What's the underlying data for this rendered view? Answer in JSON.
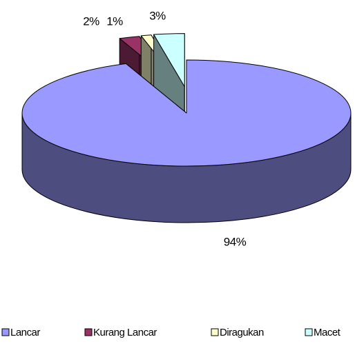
{
  "chart_data": {
    "type": "pie",
    "categories": [
      "Lancar",
      "Kurang Lancar",
      "Diragukan",
      "Macet"
    ],
    "values": [
      94,
      2,
      1,
      3
    ],
    "value_labels": [
      "94%",
      "2%",
      "1%",
      "3%"
    ],
    "colors": [
      "#9999ff",
      "#993366",
      "#ffffcc",
      "#ccffff"
    ],
    "legend": "bottom"
  }
}
